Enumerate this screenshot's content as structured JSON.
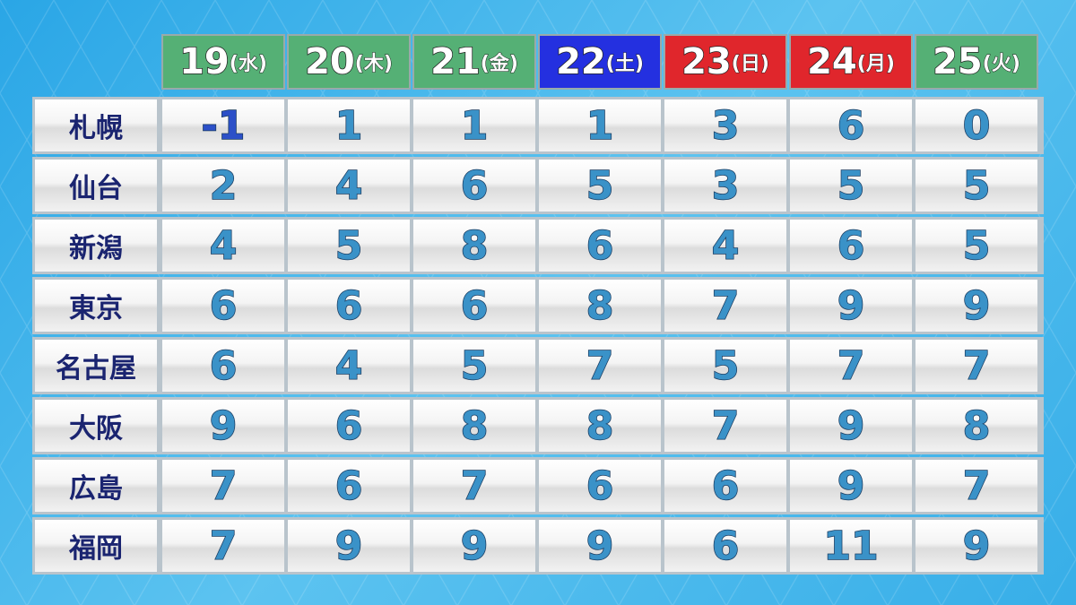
{
  "colors": {
    "weekday": "#55b075",
    "saturday": "#2430e0",
    "holiday": "#e0262c",
    "value": "#3a92c8",
    "negative": "#2c50c8",
    "city": "#1a2470"
  },
  "days": [
    {
      "date": "19",
      "wd": "(水)",
      "type": "weekday"
    },
    {
      "date": "20",
      "wd": "(木)",
      "type": "weekday"
    },
    {
      "date": "21",
      "wd": "(金)",
      "type": "weekday"
    },
    {
      "date": "22",
      "wd": "(土)",
      "type": "saturday"
    },
    {
      "date": "23",
      "wd": "(日)",
      "type": "holiday"
    },
    {
      "date": "24",
      "wd": "(月)",
      "type": "holiday"
    },
    {
      "date": "25",
      "wd": "(火)",
      "type": "weekday"
    }
  ],
  "rows": [
    {
      "city": "札幌",
      "values": [
        "-1",
        "1",
        "1",
        "1",
        "3",
        "6",
        "0"
      ]
    },
    {
      "city": "仙台",
      "values": [
        "2",
        "4",
        "6",
        "5",
        "3",
        "5",
        "5"
      ]
    },
    {
      "city": "新潟",
      "values": [
        "4",
        "5",
        "8",
        "6",
        "4",
        "6",
        "5"
      ]
    },
    {
      "city": "東京",
      "values": [
        "6",
        "6",
        "6",
        "8",
        "7",
        "9",
        "9"
      ]
    },
    {
      "city": "名古屋",
      "values": [
        "6",
        "4",
        "5",
        "7",
        "5",
        "7",
        "7"
      ]
    },
    {
      "city": "大阪",
      "values": [
        "9",
        "6",
        "8",
        "8",
        "7",
        "9",
        "8"
      ]
    },
    {
      "city": "広島",
      "values": [
        "7",
        "6",
        "7",
        "6",
        "6",
        "9",
        "7"
      ]
    },
    {
      "city": "福岡",
      "values": [
        "7",
        "9",
        "9",
        "9",
        "6",
        "11",
        "9"
      ]
    }
  ]
}
